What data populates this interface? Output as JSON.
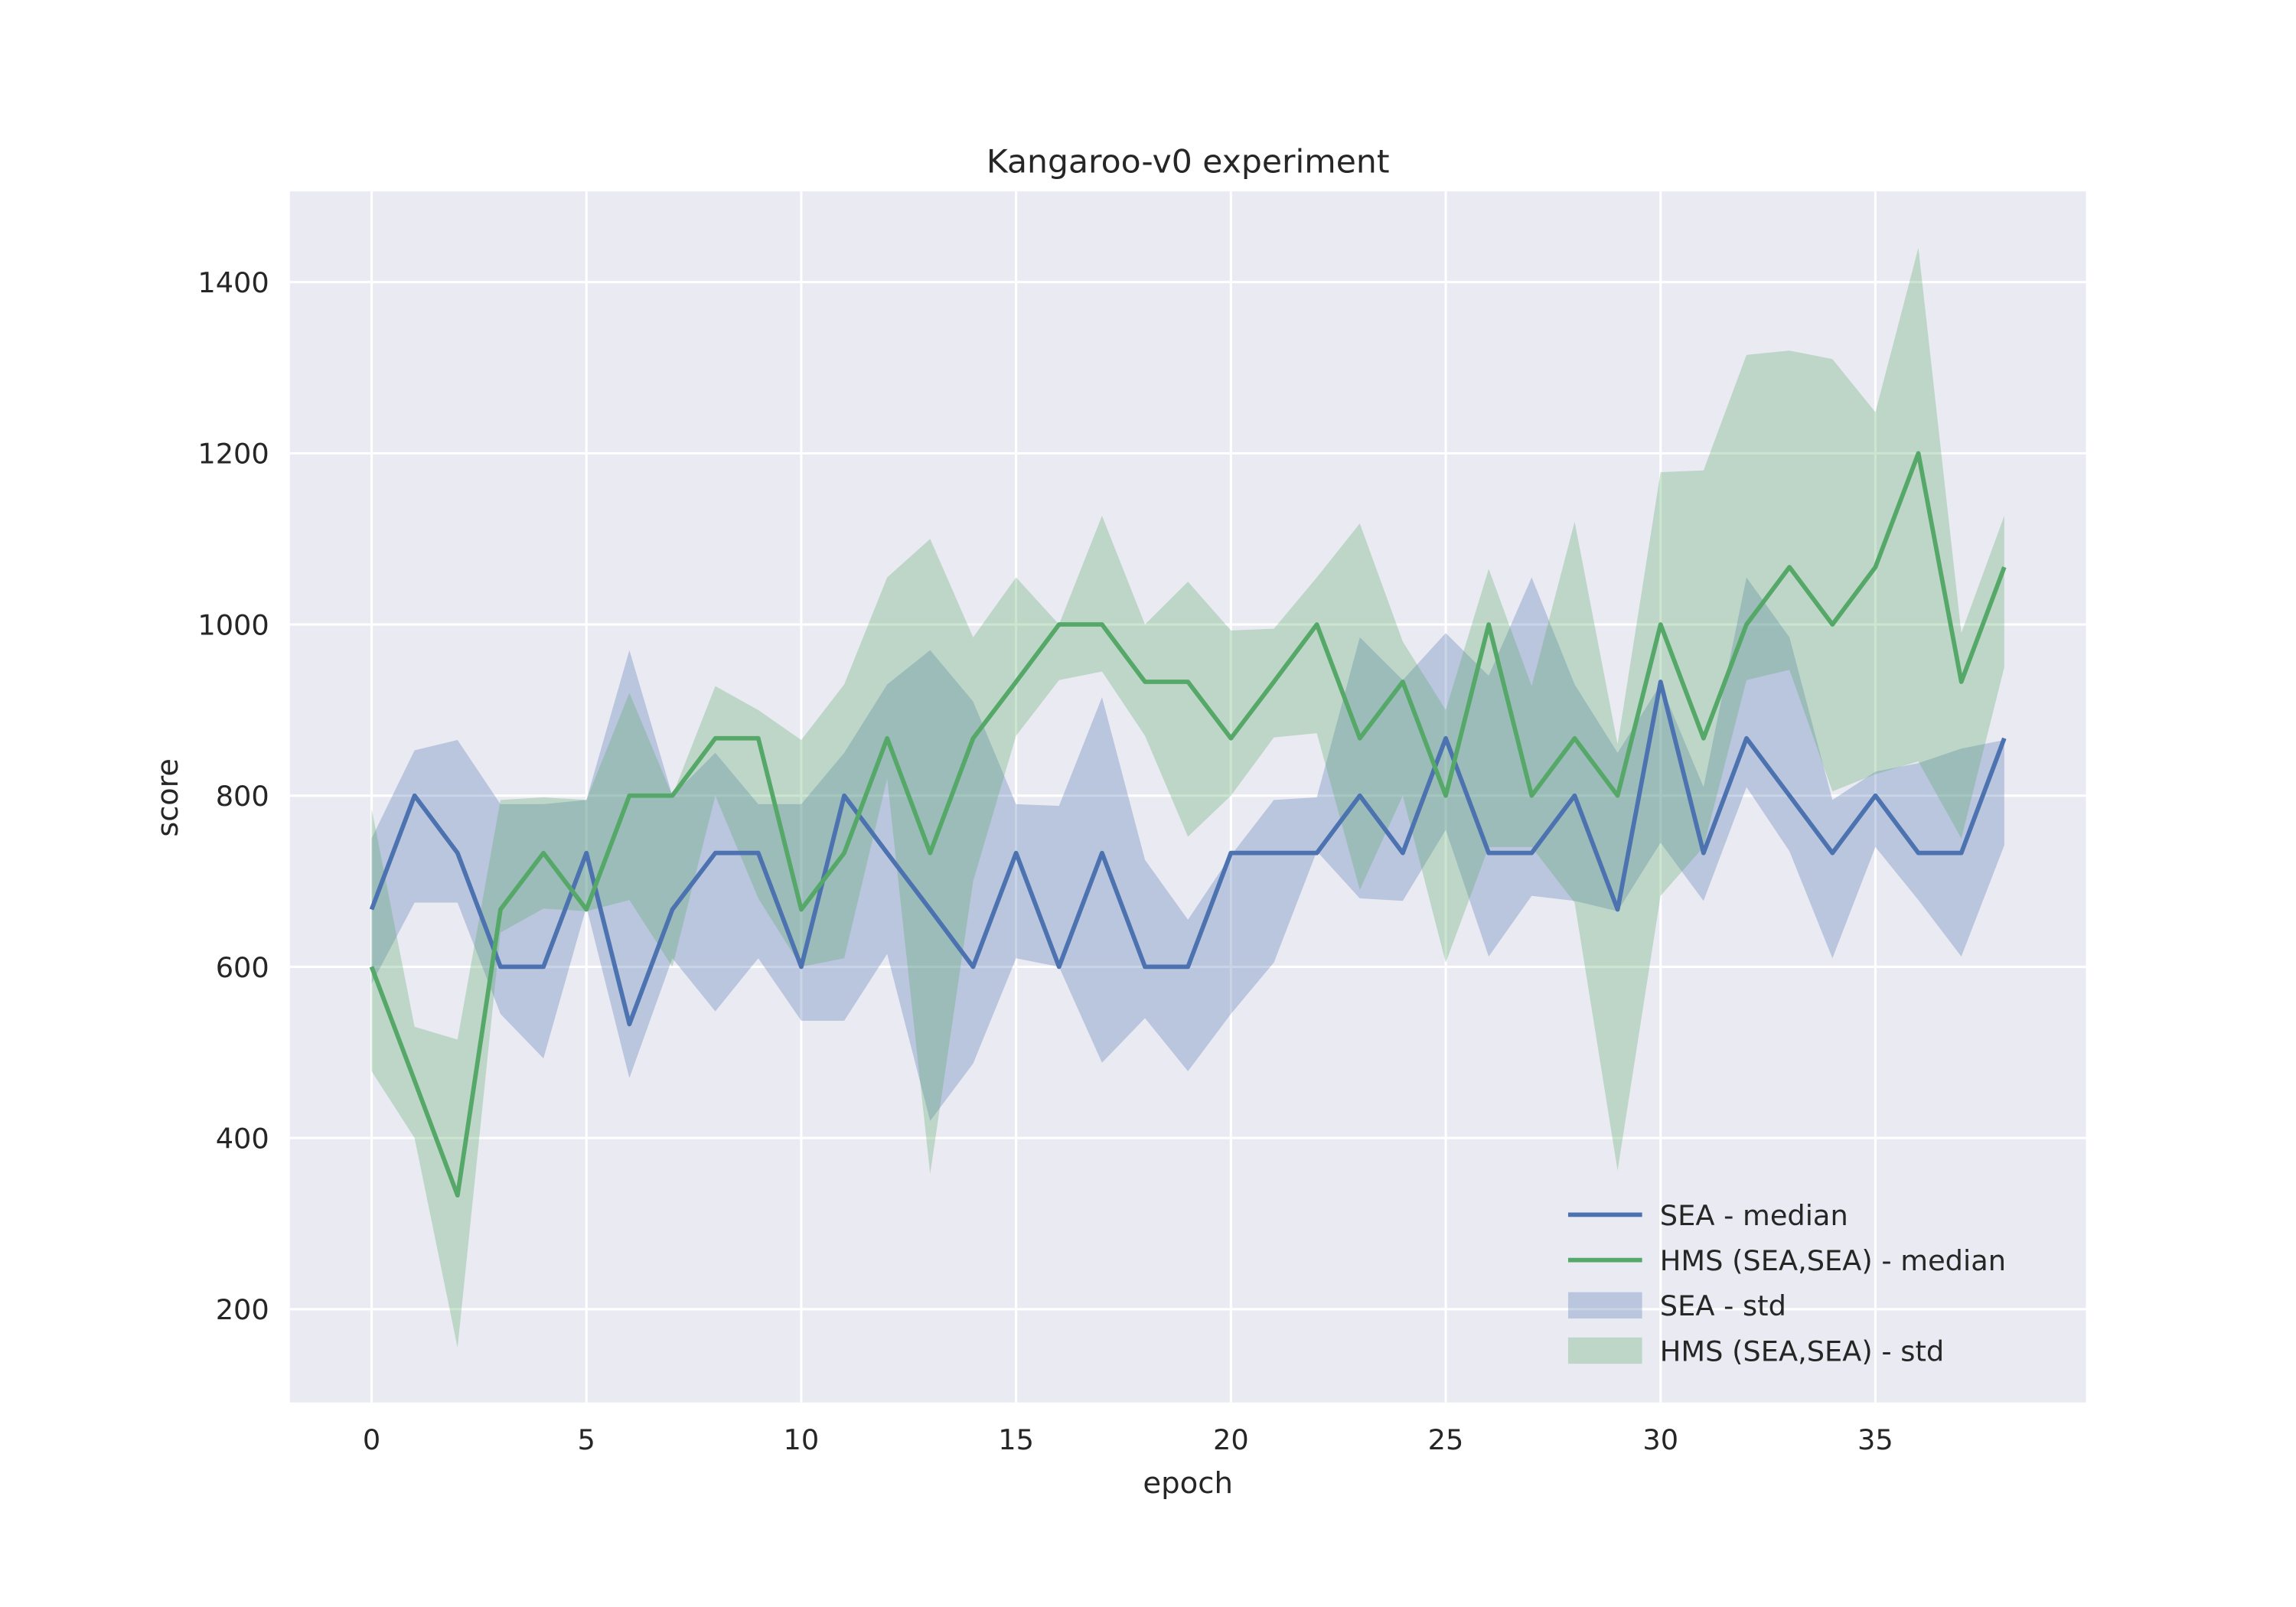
{
  "chart_data": {
    "type": "line",
    "title": "Kangaroo-v0 experiment",
    "xlabel": "epoch",
    "ylabel": "score",
    "x": [
      0,
      1,
      2,
      3,
      4,
      5,
      6,
      7,
      8,
      9,
      10,
      11,
      12,
      13,
      14,
      15,
      16,
      17,
      18,
      19,
      20,
      21,
      22,
      23,
      24,
      25,
      26,
      27,
      28,
      29,
      30,
      31,
      32,
      33,
      34,
      35,
      36,
      37,
      38
    ],
    "xlim": [
      -1.9,
      39.9
    ],
    "xticks": [
      0,
      5,
      10,
      15,
      20,
      25,
      30,
      35
    ],
    "ylim": [
      91,
      1506
    ],
    "yticks": [
      200,
      400,
      600,
      800,
      1000,
      1200,
      1400
    ],
    "grid": true,
    "legend": "lower right",
    "series": [
      {
        "name": "SEA - median",
        "color": "#4c72b0",
        "values": [
          667,
          800,
          733,
          600,
          600,
          733,
          533,
          667,
          733,
          733,
          600,
          800,
          733,
          667,
          600,
          733,
          600,
          733,
          600,
          600,
          733,
          733,
          733,
          800,
          733,
          867,
          733,
          733,
          800,
          667,
          933,
          733,
          867,
          800,
          733,
          800,
          733,
          733,
          867
        ]
      },
      {
        "name": "HMS (SEA,SEA) - median",
        "color": "#55a868",
        "values": [
          600,
          467,
          333,
          667,
          733,
          667,
          800,
          800,
          867,
          867,
          667,
          733,
          867,
          733,
          867,
          933,
          1000,
          1000,
          933,
          933,
          867,
          933,
          1000,
          867,
          933,
          800,
          1000,
          800,
          867,
          800,
          1000,
          867,
          1000,
          1067,
          1000,
          1067,
          1200,
          933,
          1067
        ]
      }
    ],
    "bands": [
      {
        "name": "SEA - std",
        "color": "#4c72b0",
        "lower": [
          580,
          675,
          675,
          545,
          493,
          670,
          470,
          610,
          548,
          610,
          537,
          537,
          615,
          420,
          487,
          610,
          600,
          488,
          540,
          478,
          545,
          605,
          735,
          680,
          677,
          760,
          612,
          683,
          677,
          665,
          745,
          677,
          810,
          735,
          610,
          740,
          678,
          612,
          742
        ],
        "upper": [
          750,
          853,
          865,
          790,
          790,
          795,
          970,
          800,
          850,
          790,
          790,
          850,
          930,
          970,
          910,
          790,
          788,
          915,
          725,
          655,
          730,
          795,
          798,
          985,
          935,
          990,
          940,
          1055,
          930,
          850,
          930,
          810,
          1055,
          985,
          795,
          828,
          838,
          855,
          865
        ]
      },
      {
        "name": "HMS (SEA,SEA) - std",
        "color": "#55a868",
        "lower": [
          478,
          400,
          155,
          640,
          668,
          665,
          678,
          600,
          800,
          680,
          600,
          610,
          820,
          358,
          700,
          870,
          935,
          945,
          870,
          752,
          800,
          868,
          873,
          690,
          800,
          605,
          740,
          740,
          675,
          362,
          683,
          740,
          935,
          947,
          805,
          825,
          840,
          750,
          950
        ],
        "upper": [
          785,
          530,
          515,
          795,
          798,
          795,
          920,
          800,
          928,
          900,
          865,
          930,
          1055,
          1100,
          985,
          1055,
          1000,
          1127,
          1000,
          1050,
          993,
          995,
          1055,
          1118,
          980,
          900,
          1065,
          928,
          1120,
          860,
          1178,
          1180,
          1315,
          1320,
          1310,
          1248,
          1440,
          990,
          1127
        ]
      }
    ]
  }
}
